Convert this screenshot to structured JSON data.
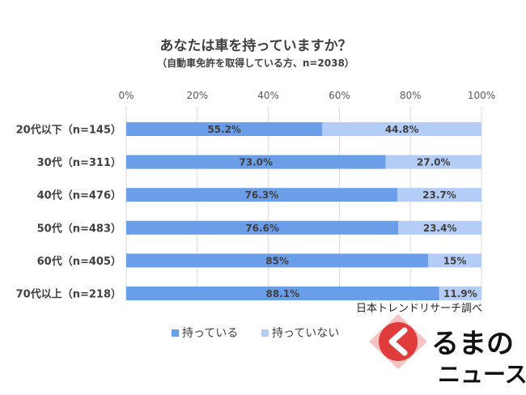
{
  "chart_data": {
    "type": "bar",
    "orientation": "horizontal",
    "stacked": true,
    "title": "あなたは車を持っていますか？",
    "subtitle": "（自動車免許を取得している方、n=2038）",
    "categories": [
      "20代以下（n=145）",
      "30代（n=311）",
      "40代（n=476）",
      "50代（n=483）",
      "60代（n=405）",
      "70代以上（n=218）"
    ],
    "series": [
      {
        "name": "持っている",
        "color": "#6b9ee8",
        "values": [
          55.2,
          73.0,
          76.3,
          76.6,
          85,
          88.1
        ],
        "labels": [
          "55.2%",
          "73.0%",
          "76.3%",
          "76.6%",
          "85%",
          "88.1%"
        ]
      },
      {
        "name": "持っていない",
        "color": "#b4cdf6",
        "values": [
          44.8,
          27.0,
          23.7,
          23.4,
          15,
          11.9
        ],
        "labels": [
          "44.8%",
          "27.0%",
          "23.7%",
          "23.4%",
          "15%",
          "11.9%"
        ]
      }
    ],
    "x_ticks": [
      "0%",
      "20%",
      "40%",
      "60%",
      "80%",
      "100%"
    ],
    "xlim": [
      0,
      100
    ],
    "grid": true,
    "legend_position": "bottom-left",
    "source_note": "日本トレンドリサーチ調べ"
  },
  "logo": {
    "line1": "るまの",
    "line2": "ニュース",
    "accent_color": "#e03c3c"
  }
}
